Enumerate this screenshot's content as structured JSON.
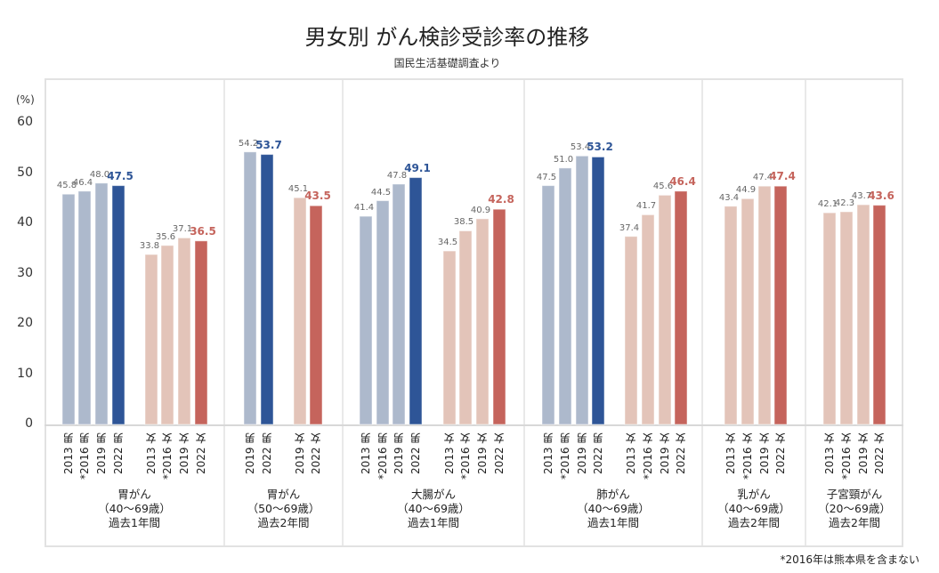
{
  "chart_data": {
    "type": "bar",
    "title": "男女別 がん検診受診率の推移",
    "subtitle": "国民生活基礎調査より",
    "ylabel": "(%)",
    "ylim": [
      0,
      60
    ],
    "yticks": [
      0,
      10,
      20,
      30,
      40,
      50,
      60
    ],
    "grid": false,
    "footnote": "*2016年は熊本県を含まない",
    "colors": {
      "male": "#adb9cc",
      "male_latest": "#2e5597",
      "female": "#e3c4b9",
      "female_latest": "#c5645c"
    },
    "sections": [
      {
        "label": "胃がん\n（40～69歳）\n過去1年間",
        "groups": [
          {
            "gender": "male",
            "categories": [
              "2013 男",
              "*2016 男",
              "2019 男",
              "2022 男"
            ],
            "values": [
              45.8,
              46.4,
              48.0,
              47.5
            ]
          },
          {
            "gender": "female",
            "categories": [
              "2013 女",
              "*2016 女",
              "2019 女",
              "2022 女"
            ],
            "values": [
              33.8,
              35.6,
              37.1,
              36.5
            ]
          }
        ]
      },
      {
        "label": "胃がん\n（50～69歳）\n過去2年間",
        "groups": [
          {
            "gender": "male",
            "categories": [
              "2019 男",
              "2022 男"
            ],
            "values": [
              54.2,
              53.7
            ]
          },
          {
            "gender": "female",
            "categories": [
              "2019 女",
              "2022 女"
            ],
            "values": [
              45.1,
              43.5
            ]
          }
        ]
      },
      {
        "label": "大腸がん\n（40～69歳）\n過去1年間",
        "groups": [
          {
            "gender": "male",
            "categories": [
              "2013 男",
              "*2016 男",
              "2019 男",
              "2022 男"
            ],
            "values": [
              41.4,
              44.5,
              47.8,
              49.1
            ]
          },
          {
            "gender": "female",
            "categories": [
              "2013 女",
              "*2016 女",
              "2019 女",
              "2022 女"
            ],
            "values": [
              34.5,
              38.5,
              40.9,
              42.8
            ]
          }
        ]
      },
      {
        "label": "肺がん\n（40～69歳）\n過去1年間",
        "groups": [
          {
            "gender": "male",
            "categories": [
              "2013 男",
              "*2016 男",
              "2019 男",
              "2022 男"
            ],
            "values": [
              47.5,
              51.0,
              53.4,
              53.2
            ]
          },
          {
            "gender": "female",
            "categories": [
              "2013 女",
              "*2016 女",
              "2019 女",
              "2022 女"
            ],
            "values": [
              37.4,
              41.7,
              45.6,
              46.4
            ]
          }
        ]
      },
      {
        "label": "乳がん\n（40～69歳）\n過去2年間",
        "groups": [
          {
            "gender": "female",
            "categories": [
              "2013 女",
              "*2016 女",
              "2019 女",
              "2022 女"
            ],
            "values": [
              43.4,
              44.9,
              47.4,
              47.4
            ]
          }
        ]
      },
      {
        "label": "子宮頸がん\n（20～69歳）\n過去2年間",
        "groups": [
          {
            "gender": "female",
            "categories": [
              "2013 女",
              "*2016 女",
              "2019 女",
              "2022 女"
            ],
            "values": [
              42.1,
              42.3,
              43.7,
              43.6
            ]
          }
        ]
      }
    ]
  }
}
